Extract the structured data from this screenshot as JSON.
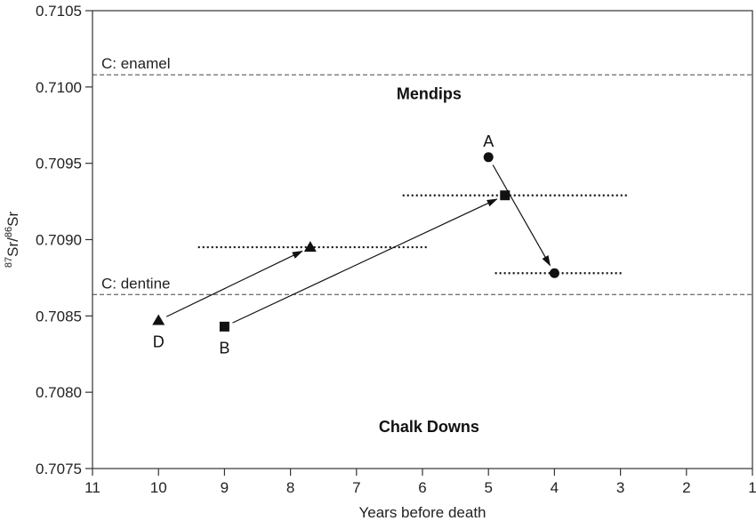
{
  "chart_data": {
    "type": "scatter",
    "xlabel": "Years before death",
    "ylabel": {
      "sup1": "87",
      "base1": "Sr/",
      "sup2": "86",
      "base2": "Sr"
    },
    "xlim": [
      11,
      1
    ],
    "ylim": [
      0.7075,
      0.7105
    ],
    "x_reversed": true,
    "x_ticks": [
      11,
      10,
      9,
      8,
      7,
      6,
      5,
      4,
      3,
      2,
      1
    ],
    "y_ticks": [
      0.7075,
      0.708,
      0.7085,
      0.709,
      0.7095,
      0.71,
      0.7105
    ],
    "y_tick_labels": [
      "0.7075",
      "0.7080",
      "0.7085",
      "0.7090",
      "0.7095",
      "0.7100",
      "0.7105"
    ],
    "grid": false,
    "region_labels": [
      {
        "text": "Mendips",
        "x": 5.9,
        "y": 0.70992
      },
      {
        "text": "Chalk Downs",
        "x": 5.9,
        "y": 0.70774
      }
    ],
    "reference_lines": [
      {
        "label": "C: enamel",
        "y": 0.71008,
        "style": "dashed"
      },
      {
        "label": "C: dentine",
        "y": 0.70864,
        "style": "dashed"
      }
    ],
    "points": [
      {
        "id": "D-start",
        "label": "D",
        "marker": "triangle",
        "x": 10.0,
        "y": 0.70847
      },
      {
        "id": "D-end",
        "label": "",
        "marker": "triangle",
        "x": 7.7,
        "y": 0.70895,
        "err_x": [
          9.4,
          5.9
        ]
      },
      {
        "id": "B-start",
        "label": "B",
        "marker": "square",
        "x": 9.0,
        "y": 0.70843
      },
      {
        "id": "B-end",
        "label": "",
        "marker": "square",
        "x": 4.75,
        "y": 0.70929,
        "err_x": [
          6.3,
          2.9
        ]
      },
      {
        "id": "A-start",
        "label": "A",
        "marker": "circle",
        "x": 5.0,
        "y": 0.70954
      },
      {
        "id": "A-end",
        "label": "",
        "marker": "circle",
        "x": 4.0,
        "y": 0.70878,
        "err_x": [
          4.9,
          2.95
        ]
      }
    ],
    "arrows": [
      {
        "from": "D-start",
        "to": "D-end"
      },
      {
        "from": "B-start",
        "to": "B-end"
      },
      {
        "from": "A-start",
        "to": "A-end"
      }
    ]
  }
}
